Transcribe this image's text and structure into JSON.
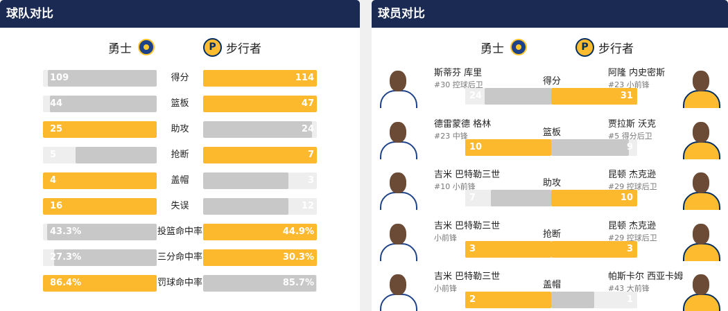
{
  "team_panel": {
    "title": "球队对比",
    "home_team": "勇士",
    "away_team": "步行者",
    "away_logo_letter": "P",
    "stats": [
      {
        "label": "得分",
        "home": "109",
        "away": "114",
        "home_ratio": 0.956,
        "away_ratio": 1.0,
        "home_color": "#c8c8c8",
        "away_color": "#fdb92e"
      },
      {
        "label": "篮板",
        "home": "44",
        "away": "47",
        "home_ratio": 0.936,
        "away_ratio": 1.0,
        "home_color": "#c8c8c8",
        "away_color": "#fdb92e"
      },
      {
        "label": "助攻",
        "home": "25",
        "away": "24",
        "home_ratio": 1.0,
        "away_ratio": 0.96,
        "home_color": "#fdb92e",
        "away_color": "#c8c8c8"
      },
      {
        "label": "抢断",
        "home": "5",
        "away": "7",
        "home_ratio": 0.714,
        "away_ratio": 1.0,
        "home_color": "#c8c8c8",
        "away_color": "#fdb92e"
      },
      {
        "label": "盖帽",
        "home": "4",
        "away": "3",
        "home_ratio": 1.0,
        "away_ratio": 0.75,
        "home_color": "#fdb92e",
        "away_color": "#c8c8c8"
      },
      {
        "label": "失误",
        "home": "16",
        "away": "12",
        "home_ratio": 1.0,
        "away_ratio": 0.75,
        "home_color": "#fdb92e",
        "away_color": "#c8c8c8"
      },
      {
        "label": "投篮命中率",
        "home": "43.3%",
        "away": "44.9%",
        "home_ratio": 0.964,
        "away_ratio": 1.0,
        "home_color": "#c8c8c8",
        "away_color": "#fdb92e"
      },
      {
        "label": "三分命中率",
        "home": "27.3%",
        "away": "30.3%",
        "home_ratio": 0.9,
        "away_ratio": 1.0,
        "home_color": "#c8c8c8",
        "away_color": "#fdb92e"
      },
      {
        "label": "罚球命中率",
        "home": "86.4%",
        "away": "85.7%",
        "home_ratio": 1.0,
        "away_ratio": 0.992,
        "home_color": "#fdb92e",
        "away_color": "#c8c8c8"
      }
    ]
  },
  "player_panel": {
    "title": "球员对比",
    "home_team": "勇士",
    "away_team": "步行者",
    "away_logo_letter": "P",
    "rows": [
      {
        "label": "得分",
        "home_name": "斯蒂芬 库里",
        "home_pos": "#30 控球后卫",
        "away_name": "阿隆 内史密斯",
        "away_pos": "#23 小前锋",
        "home_val": "24",
        "away_val": "31",
        "home_ratio": 0.774,
        "away_ratio": 1.0,
        "home_color": "#c8c8c8",
        "away_color": "#fdb92e"
      },
      {
        "label": "篮板",
        "home_name": "德雷蒙德 格林",
        "home_pos": "#23 中锋",
        "away_name": "贾拉斯 沃克",
        "away_pos": "#5 得分后卫",
        "home_val": "10",
        "away_val": "9",
        "home_ratio": 1.0,
        "away_ratio": 0.9,
        "home_color": "#fdb92e",
        "away_color": "#c8c8c8"
      },
      {
        "label": "助攻",
        "home_name": "吉米 巴特勒三世",
        "home_pos": "#10 小前锋",
        "away_name": "昆顿 杰克逊",
        "away_pos": "#29 控球后卫",
        "home_val": "7",
        "away_val": "10",
        "home_ratio": 0.7,
        "away_ratio": 1.0,
        "home_color": "#c8c8c8",
        "away_color": "#fdb92e"
      },
      {
        "label": "抢断",
        "home_name": "吉米 巴特勒三世",
        "home_pos": "小前锋",
        "away_name": "昆顿 杰克逊",
        "away_pos": "#29 控球后卫",
        "home_val": "3",
        "away_val": "3",
        "home_ratio": 1.0,
        "away_ratio": 1.0,
        "home_color": "#fdb92e",
        "away_color": "#fdb92e"
      },
      {
        "label": "盖帽",
        "home_name": "吉米 巴特勒三世",
        "home_pos": "小前锋",
        "away_name": "帕斯卡尔 西亚卡姆",
        "away_pos": "#43 大前锋",
        "home_val": "2",
        "away_val": "1",
        "home_ratio": 1.0,
        "away_ratio": 0.5,
        "home_color": "#fdb92e",
        "away_color": "#c8c8c8"
      }
    ]
  }
}
